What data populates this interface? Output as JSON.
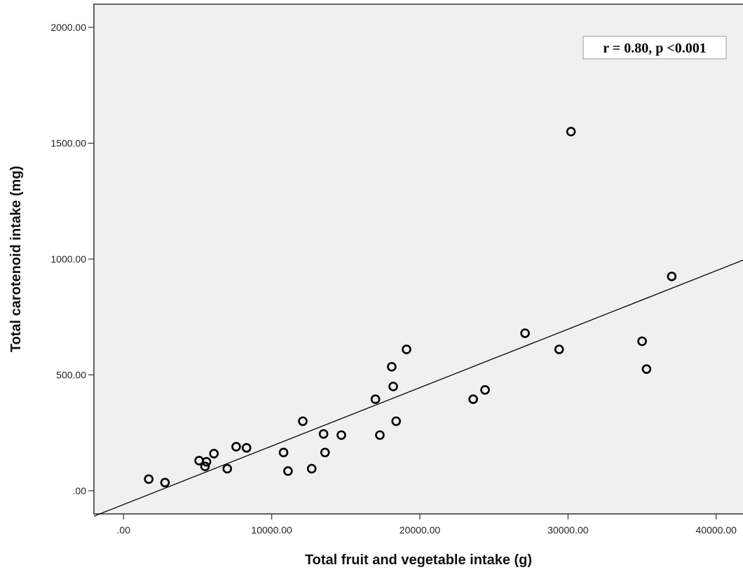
{
  "chart_data": {
    "type": "scatter",
    "title": "",
    "xlabel": "Total fruit and vegetable intake (g)",
    "ylabel": "Total carotenoid intake (mg)",
    "xlim": [
      -2000,
      42000
    ],
    "ylim": [
      -100,
      2100
    ],
    "x_ticks": [
      0,
      10000,
      20000,
      30000,
      40000
    ],
    "x_tick_labels": [
      ".00",
      "10000.00",
      "20000.00",
      "30000.00",
      "40000.00"
    ],
    "y_ticks": [
      0,
      500,
      1000,
      1500,
      2000
    ],
    "y_tick_labels": [
      ".00",
      "500.00",
      "1000.00",
      "1500.00",
      "2000.00"
    ],
    "grid": false,
    "colors": {
      "plot_background": "#f0f0f0",
      "marker_edge": "#000000",
      "line": "#000000"
    },
    "points": [
      {
        "x": 1700,
        "y": 50
      },
      {
        "x": 2800,
        "y": 35
      },
      {
        "x": 5100,
        "y": 130
      },
      {
        "x": 5600,
        "y": 125
      },
      {
        "x": 5500,
        "y": 105
      },
      {
        "x": 6100,
        "y": 160
      },
      {
        "x": 7000,
        "y": 95
      },
      {
        "x": 7600,
        "y": 190
      },
      {
        "x": 8300,
        "y": 185
      },
      {
        "x": 10800,
        "y": 165
      },
      {
        "x": 11100,
        "y": 85
      },
      {
        "x": 12100,
        "y": 300
      },
      {
        "x": 12700,
        "y": 95
      },
      {
        "x": 13500,
        "y": 245
      },
      {
        "x": 13600,
        "y": 165
      },
      {
        "x": 14700,
        "y": 240
      },
      {
        "x": 17000,
        "y": 395
      },
      {
        "x": 17300,
        "y": 240
      },
      {
        "x": 18100,
        "y": 535
      },
      {
        "x": 18200,
        "y": 450
      },
      {
        "x": 18400,
        "y": 300
      },
      {
        "x": 19100,
        "y": 610
      },
      {
        "x": 23600,
        "y": 395
      },
      {
        "x": 24400,
        "y": 435
      },
      {
        "x": 27100,
        "y": 680
      },
      {
        "x": 29400,
        "y": 610
      },
      {
        "x": 30200,
        "y": 1550
      },
      {
        "x": 35000,
        "y": 645
      },
      {
        "x": 35300,
        "y": 525
      },
      {
        "x": 37000,
        "y": 925
      }
    ],
    "fit_line": {
      "start": {
        "x": -2000,
        "y": -110
      },
      "end": {
        "x": 42000,
        "y": 1000
      }
    },
    "annotation": {
      "text": "r = 0.80, p <0.001",
      "placement": "top-right"
    }
  }
}
